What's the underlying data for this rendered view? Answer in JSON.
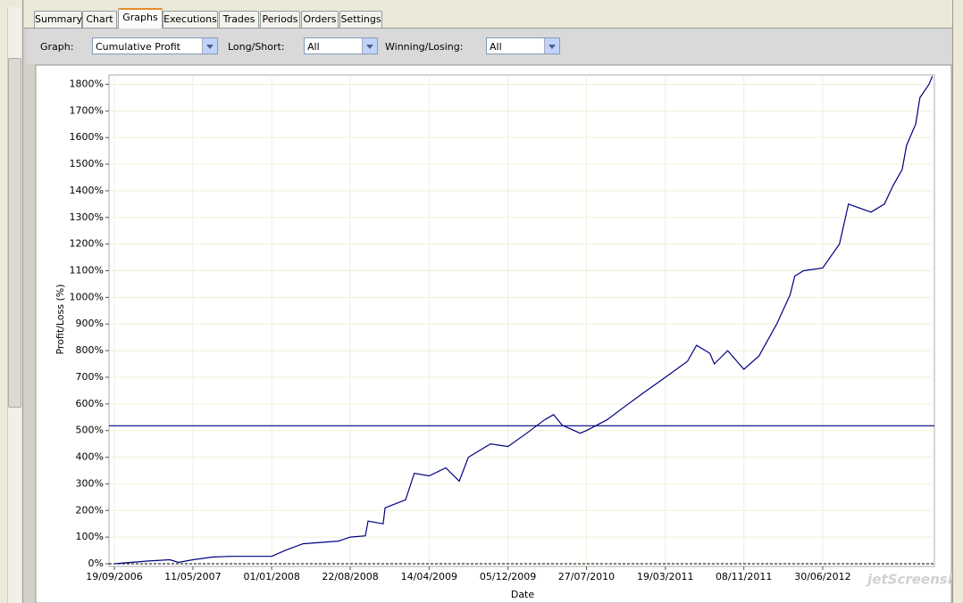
{
  "tabs": [
    "Summary",
    "Chart",
    "Graphs",
    "Executions",
    "Trades",
    "Periods",
    "Orders",
    "Settings"
  ],
  "toolbar": {
    "graph_label": "Graph:",
    "graph_value": "Cumulative Profit",
    "long_short_label": "Long/Short:",
    "long_short_value": "All",
    "winning_losing_label": "Winning/Losing:",
    "winning_losing_value": "All"
  },
  "watermark": "jetScreenshot",
  "chart_data": {
    "type": "line",
    "xlabel": "Date",
    "ylabel": "Profit/Loss (%)",
    "color": "#000080",
    "grid": true,
    "x": [
      "19/09/2006",
      "26/12/2006",
      "03/03/2007",
      "29/03/2007",
      "11/05/2007",
      "08/07/2007",
      "31/08/2007",
      "01/01/2008",
      "10/02/2008",
      "03/04/2008",
      "18/07/2008",
      "22/08/2008",
      "06/10/2008",
      "14/10/2008",
      "28/11/2008",
      "04/12/2008",
      "03/02/2009",
      "01/03/2009",
      "14/04/2009",
      "03/06/2009",
      "13/07/2009",
      "09/08/2009",
      "14/10/2009",
      "05/12/2009",
      "30/01/2010",
      "24/03/2010",
      "20/04/2010",
      "16/05/2010",
      "08/07/2010",
      "27/07/2010",
      "26/09/2010",
      "18/11/2010",
      "11/01/2011",
      "19/03/2011",
      "24/05/2011",
      "20/06/2011",
      "30/07/2011",
      "12/08/2011",
      "21/09/2011",
      "08/11/2011",
      "23/12/2011",
      "14/02/2012",
      "25/03/2012",
      "08/04/2012",
      "04/05/2012",
      "30/06/2012",
      "19/08/2012",
      "15/09/2012",
      "21/11/2012",
      "31/12/2012",
      "26/01/2013",
      "22/02/2013",
      "07/03/2013",
      "03/04/2013",
      "16/04/2013",
      "13/05/2013",
      "23/05/2013"
    ],
    "values": [
      0,
      10,
      15,
      5,
      15,
      25,
      28,
      28,
      50,
      75,
      85,
      100,
      105,
      160,
      150,
      210,
      240,
      340,
      330,
      360,
      310,
      400,
      450,
      440,
      490,
      540,
      560,
      520,
      490,
      500,
      540,
      590,
      640,
      700,
      760,
      820,
      790,
      750,
      800,
      730,
      780,
      900,
      1010,
      1080,
      1100,
      1110,
      1200,
      1350,
      1320,
      1350,
      1420,
      1480,
      1570,
      1650,
      1750,
      1800,
      1830
    ],
    "hline": 518,
    "xlim": [
      "03/09/2006",
      "29/05/2013"
    ],
    "xticks": [
      "19/09/2006",
      "11/05/2007",
      "01/01/2008",
      "22/08/2008",
      "14/04/2009",
      "05/12/2009",
      "27/07/2010",
      "19/03/2011",
      "08/11/2011",
      "30/06/2012"
    ],
    "ylim": [
      -10,
      1835
    ],
    "yticks": [
      {
        "value": 0,
        "label": "0%"
      },
      {
        "value": 100,
        "label": "100%"
      },
      {
        "value": 200,
        "label": "200%"
      },
      {
        "value": 300,
        "label": "300%"
      },
      {
        "value": 400,
        "label": "400%"
      },
      {
        "value": 500,
        "label": "500%"
      },
      {
        "value": 600,
        "label": "600%"
      },
      {
        "value": 700,
        "label": "700%"
      },
      {
        "value": 800,
        "label": "800%"
      },
      {
        "value": 900,
        "label": "900%"
      },
      {
        "value": 1000,
        "label": "1000%"
      },
      {
        "value": 1100,
        "label": "1100%"
      },
      {
        "value": 1200,
        "label": "1200%"
      },
      {
        "value": 1300,
        "label": "1300%"
      },
      {
        "value": 1400,
        "label": "1400%"
      },
      {
        "value": 1500,
        "label": "1500%"
      },
      {
        "value": 1600,
        "label": "1600%"
      },
      {
        "value": 1700,
        "label": "1700%"
      },
      {
        "value": 1800,
        "label": "1800%"
      }
    ]
  }
}
